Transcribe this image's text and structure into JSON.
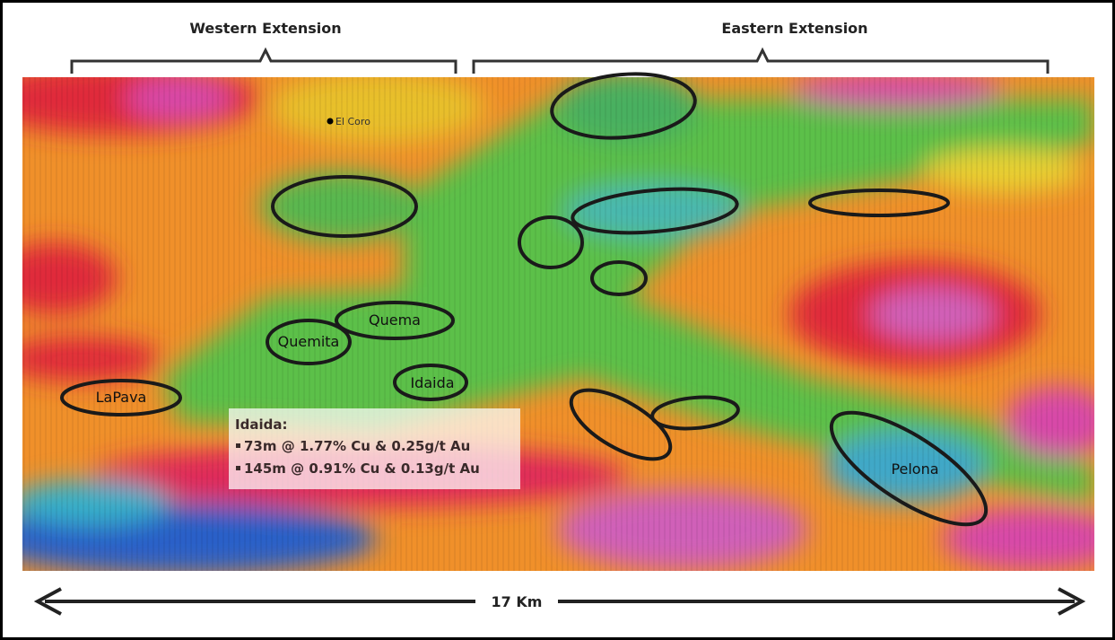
{
  "header": {
    "west": "Western Extension",
    "east": "Eastern Extension"
  },
  "map": {
    "town": "El Coro",
    "targets": [
      "Quema",
      "Quemita",
      "Idaida",
      "LaPava",
      "Pelona"
    ]
  },
  "callout": {
    "title": "Idaida:",
    "items": [
      "73m @ 1.77% Cu & 0.25g/t Au",
      "145m @ 0.91% Cu & 0.13g/t Au"
    ]
  },
  "scale": {
    "label": "17 Km"
  }
}
